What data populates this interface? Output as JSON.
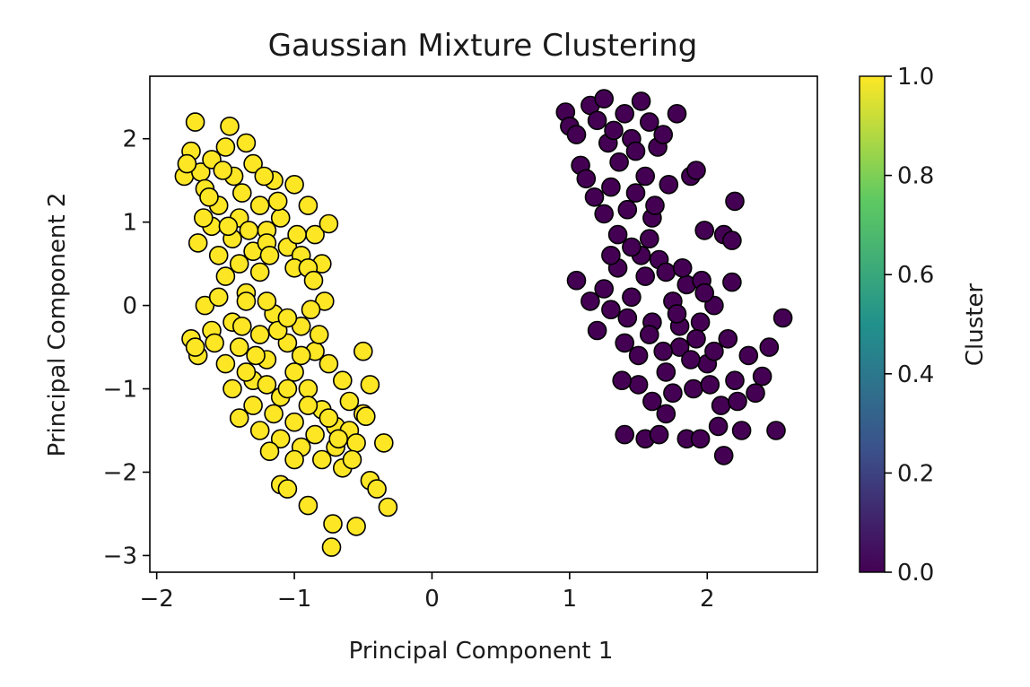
{
  "chart_data": {
    "type": "scatter",
    "title": "Gaussian Mixture Clustering",
    "xlabel": "Principal Component 1",
    "ylabel": "Principal Component 2",
    "xlim": [
      -2.05,
      2.8
    ],
    "ylim": [
      -3.2,
      2.75
    ],
    "xticks": [
      -2,
      -1,
      0,
      1,
      2
    ],
    "xtick_labels": [
      "−2",
      "−1",
      "0",
      "1",
      "2"
    ],
    "yticks": [
      -3,
      -2,
      -1,
      0,
      1,
      2
    ],
    "yticks_labels": [
      "−3",
      "−2",
      "−1",
      "0",
      "1",
      "2"
    ],
    "colorbar": {
      "label": "Cluster",
      "range": [
        0.0,
        1.0
      ],
      "ticks": [
        0.0,
        0.2,
        0.4,
        0.6,
        0.8,
        1.0
      ],
      "tick_labels": [
        "0.0",
        "0.2",
        "0.4",
        "0.6",
        "0.8",
        "1.0"
      ],
      "colormap": "viridis",
      "colors": [
        "#440154",
        "#3b528b",
        "#21918c",
        "#5ec962",
        "#fde725"
      ]
    },
    "series": [
      {
        "cluster": 1,
        "color": "#fde725",
        "points": [
          [
            -1.8,
            1.55
          ],
          [
            -1.75,
            1.85
          ],
          [
            -1.72,
            2.2
          ],
          [
            -1.68,
            1.6
          ],
          [
            -1.65,
            1.4
          ],
          [
            -1.6,
            1.75
          ],
          [
            -1.55,
            1.2
          ],
          [
            -1.5,
            1.9
          ],
          [
            -1.47,
            2.15
          ],
          [
            -1.44,
            1.55
          ],
          [
            -1.4,
            1.05
          ],
          [
            -1.35,
            1.95
          ],
          [
            -1.3,
            1.7
          ],
          [
            -1.25,
            1.2
          ],
          [
            -1.2,
            0.9
          ],
          [
            -1.15,
            1.5
          ],
          [
            -1.1,
            1.05
          ],
          [
            -1.05,
            0.7
          ],
          [
            -1.0,
            1.45
          ],
          [
            -0.95,
            0.6
          ],
          [
            -0.9,
            1.2
          ],
          [
            -0.85,
            0.85
          ],
          [
            -0.8,
            0.5
          ],
          [
            -0.75,
            0.98
          ],
          [
            -1.7,
            0.75
          ],
          [
            -1.6,
            0.95
          ],
          [
            -1.55,
            0.6
          ],
          [
            -1.5,
            0.35
          ],
          [
            -1.45,
            0.8
          ],
          [
            -1.4,
            0.5
          ],
          [
            -1.35,
            0.15
          ],
          [
            -1.3,
            0.65
          ],
          [
            -1.25,
            0.4
          ],
          [
            -1.2,
            0.75
          ],
          [
            -1.0,
            0.45
          ],
          [
            -0.9,
            0.45
          ],
          [
            -1.78,
            1.7
          ],
          [
            -1.62,
            1.3
          ],
          [
            -1.52,
            1.62
          ],
          [
            -1.38,
            1.35
          ],
          [
            -1.22,
            1.55
          ],
          [
            -1.12,
            1.25
          ],
          [
            -1.66,
            1.05
          ],
          [
            -1.48,
            0.95
          ],
          [
            -1.33,
            0.9
          ],
          [
            -1.18,
            0.6
          ],
          [
            -0.98,
            0.85
          ],
          [
            -0.86,
            0.3
          ],
          [
            -1.75,
            -0.4
          ],
          [
            -1.7,
            -0.6
          ],
          [
            -1.65,
            0.0
          ],
          [
            -1.6,
            -0.3
          ],
          [
            -1.55,
            0.1
          ],
          [
            -1.5,
            -0.7
          ],
          [
            -1.45,
            -0.2
          ],
          [
            -1.4,
            -0.5
          ],
          [
            -1.35,
            0.05
          ],
          [
            -1.3,
            -0.9
          ],
          [
            -1.25,
            -0.35
          ],
          [
            -1.2,
            -0.65
          ],
          [
            -1.15,
            -0.1
          ],
          [
            -1.1,
            -1.1
          ],
          [
            -1.05,
            -0.45
          ],
          [
            -1.0,
            -0.8
          ],
          [
            -0.95,
            -0.25
          ],
          [
            -0.9,
            -1.0
          ],
          [
            -0.85,
            -0.55
          ],
          [
            -0.8,
            -1.25
          ],
          [
            -0.75,
            -0.7
          ],
          [
            -0.7,
            -1.45
          ],
          [
            -0.65,
            -0.9
          ],
          [
            -0.6,
            -1.15
          ],
          [
            -1.45,
            -1.0
          ],
          [
            -1.4,
            -1.35
          ],
          [
            -1.35,
            -0.8
          ],
          [
            -1.3,
            -1.2
          ],
          [
            -1.25,
            -1.5
          ],
          [
            -1.2,
            -0.95
          ],
          [
            -1.15,
            -1.3
          ],
          [
            -1.1,
            -1.6
          ],
          [
            -1.05,
            -1.0
          ],
          [
            -1.0,
            -1.4
          ],
          [
            -0.95,
            -1.7
          ],
          [
            -0.9,
            -1.2
          ],
          [
            -0.85,
            -1.55
          ],
          [
            -0.8,
            -1.85
          ],
          [
            -0.75,
            -1.35
          ],
          [
            -0.7,
            -1.7
          ],
          [
            -0.65,
            -1.95
          ],
          [
            -0.6,
            -1.5
          ],
          [
            -0.55,
            -1.65
          ],
          [
            -0.5,
            -1.3
          ],
          [
            -0.45,
            -2.1
          ],
          [
            -0.4,
            -2.2
          ],
          [
            -0.35,
            -1.65
          ],
          [
            -0.32,
            -2.42
          ],
          [
            -1.1,
            -2.15
          ],
          [
            -1.05,
            -2.2
          ],
          [
            -0.9,
            -2.4
          ],
          [
            -0.72,
            -2.62
          ],
          [
            -0.73,
            -2.9
          ],
          [
            -0.55,
            -2.65
          ],
          [
            -1.0,
            -1.85
          ],
          [
            -1.12,
            -0.3
          ],
          [
            -1.28,
            -0.6
          ],
          [
            -1.38,
            -0.25
          ],
          [
            -1.58,
            -0.45
          ],
          [
            -1.72,
            -0.5
          ],
          [
            -1.2,
            0.05
          ],
          [
            -1.05,
            -0.15
          ],
          [
            -0.95,
            -0.6
          ],
          [
            -0.82,
            -0.35
          ],
          [
            -0.78,
            0.05
          ],
          [
            -0.88,
            -0.05
          ],
          [
            -0.5,
            -0.55
          ],
          [
            -0.48,
            -1.33
          ],
          [
            -0.45,
            -0.95
          ],
          [
            -0.58,
            -1.85
          ],
          [
            -0.68,
            -1.6
          ],
          [
            -1.18,
            -1.75
          ]
        ]
      },
      {
        "cluster": 0,
        "color": "#440154",
        "points": [
          [
            0.97,
            2.32
          ],
          [
            1.0,
            2.15
          ],
          [
            1.05,
            2.05
          ],
          [
            1.08,
            1.68
          ],
          [
            1.12,
            1.52
          ],
          [
            1.15,
            2.4
          ],
          [
            1.18,
            1.3
          ],
          [
            1.2,
            2.22
          ],
          [
            1.25,
            2.48
          ],
          [
            1.28,
            1.95
          ],
          [
            1.3,
            1.42
          ],
          [
            1.32,
            2.1
          ],
          [
            1.36,
            1.72
          ],
          [
            1.4,
            2.3
          ],
          [
            1.42,
            1.15
          ],
          [
            1.45,
            2.0
          ],
          [
            1.48,
            1.85
          ],
          [
            1.52,
            2.45
          ],
          [
            1.55,
            1.55
          ],
          [
            1.58,
            2.2
          ],
          [
            1.6,
            1.05
          ],
          [
            1.64,
            1.9
          ],
          [
            1.68,
            2.05
          ],
          [
            1.78,
            2.3
          ],
          [
            1.88,
            1.55
          ],
          [
            1.92,
            1.62
          ],
          [
            1.98,
            0.9
          ],
          [
            2.12,
            0.85
          ],
          [
            2.18,
            0.78
          ],
          [
            2.2,
            1.25
          ],
          [
            2.18,
            0.28
          ],
          [
            1.05,
            0.3
          ],
          [
            1.15,
            0.05
          ],
          [
            1.2,
            -0.3
          ],
          [
            1.25,
            0.2
          ],
          [
            1.3,
            -0.05
          ],
          [
            1.35,
            0.45
          ],
          [
            1.4,
            -0.45
          ],
          [
            1.45,
            0.1
          ],
          [
            1.5,
            -0.6
          ],
          [
            1.55,
            0.35
          ],
          [
            1.6,
            -0.2
          ],
          [
            1.65,
            0.55
          ],
          [
            1.7,
            -0.8
          ],
          [
            1.75,
            0.05
          ],
          [
            1.8,
            -0.5
          ],
          [
            1.85,
            0.25
          ],
          [
            1.9,
            -1.0
          ],
          [
            1.95,
            -0.2
          ],
          [
            2.0,
            -0.7
          ],
          [
            2.05,
            0.0
          ],
          [
            2.1,
            -1.2
          ],
          [
            2.15,
            -0.4
          ],
          [
            2.2,
            -0.9
          ],
          [
            2.25,
            -1.5
          ],
          [
            2.3,
            -0.6
          ],
          [
            2.35,
            -1.05
          ],
          [
            2.4,
            -0.85
          ],
          [
            2.45,
            -0.5
          ],
          [
            2.5,
            -1.5
          ],
          [
            2.55,
            -0.15
          ],
          [
            1.4,
            -1.55
          ],
          [
            1.55,
            -1.6
          ],
          [
            1.65,
            -1.55
          ],
          [
            1.85,
            -1.6
          ],
          [
            1.95,
            -1.6
          ],
          [
            2.12,
            -1.8
          ],
          [
            1.5,
            -0.95
          ],
          [
            1.6,
            -1.15
          ],
          [
            1.7,
            -1.3
          ],
          [
            1.75,
            -1.05
          ],
          [
            1.8,
            -0.25
          ],
          [
            1.88,
            -0.65
          ],
          [
            1.92,
            -0.4
          ],
          [
            2.02,
            -0.95
          ],
          [
            2.08,
            -1.45
          ],
          [
            2.22,
            -1.15
          ],
          [
            1.38,
            -0.9
          ],
          [
            1.42,
            -0.15
          ],
          [
            1.52,
            0.6
          ],
          [
            1.58,
            0.8
          ],
          [
            1.62,
            1.2
          ],
          [
            1.48,
            1.35
          ],
          [
            1.35,
            0.85
          ],
          [
            1.25,
            1.1
          ],
          [
            1.7,
            0.4
          ],
          [
            1.78,
            -0.1
          ],
          [
            1.96,
            0.3
          ],
          [
            1.82,
            0.45
          ],
          [
            1.68,
            -0.55
          ],
          [
            1.58,
            -0.35
          ],
          [
            2.05,
            -0.55
          ],
          [
            1.98,
            0.15
          ],
          [
            1.72,
            1.45
          ],
          [
            1.45,
            0.7
          ],
          [
            1.3,
            0.6
          ]
        ]
      }
    ]
  }
}
